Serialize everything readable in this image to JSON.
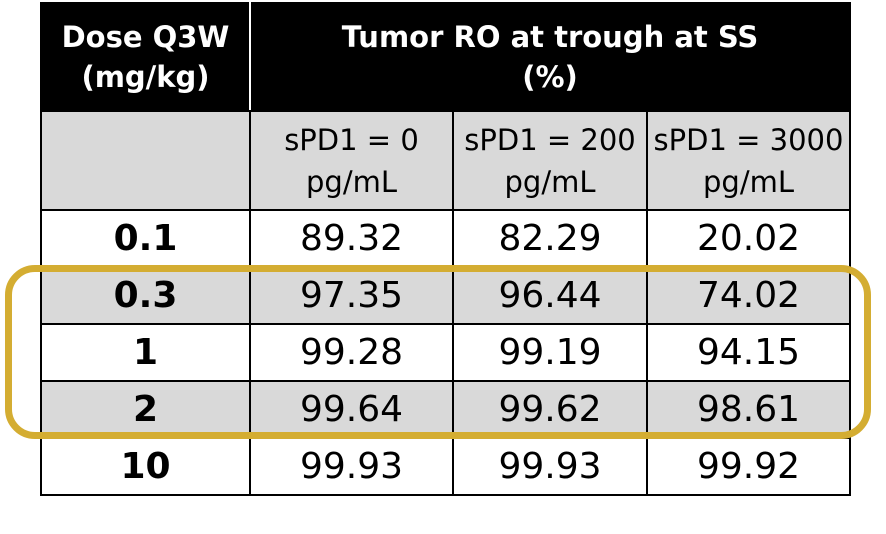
{
  "header": {
    "dose_line1": "Dose Q3W",
    "dose_line2": "(mg/kg)",
    "ro_line1": "Tumor RO at trough at SS",
    "ro_line2": "(%)"
  },
  "subheader": [
    {
      "line1": "sPD1 = 0",
      "line2": "pg/mL"
    },
    {
      "line1": "sPD1 = 200",
      "line2": "pg/mL"
    },
    {
      "line1": "sPD1 = 3000",
      "line2": "pg/mL"
    }
  ],
  "rows": [
    {
      "dose": "0.1",
      "values": [
        "89.32",
        "82.29",
        "20.02"
      ]
    },
    {
      "dose": "0.3",
      "values": [
        "97.35",
        "96.44",
        "74.02"
      ]
    },
    {
      "dose": "1",
      "values": [
        "99.28",
        "99.19",
        "94.15"
      ]
    },
    {
      "dose": "2",
      "values": [
        "99.64",
        "99.62",
        "98.61"
      ]
    },
    {
      "dose": "10",
      "values": [
        "99.93",
        "99.93",
        "99.92"
      ]
    }
  ],
  "colors": {
    "header_bg": "#000000",
    "header_text": "#ffffff",
    "shade": "#d9d9d9",
    "highlight": "#d4ad32"
  }
}
